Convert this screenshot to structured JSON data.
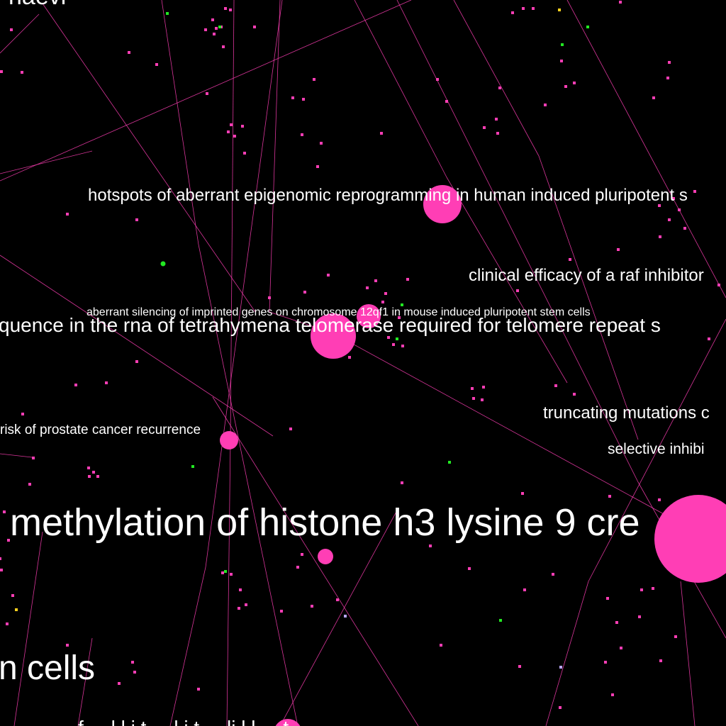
{
  "colors": {
    "background": "#000000",
    "node": "#ff3eb5",
    "edge": "#ff3eb5",
    "node_green": "#22e822",
    "node_yellow": "#ffd21f",
    "node_lavender": "#b9a6ff",
    "label": "#ffffff"
  },
  "labels": {
    "naevi": "naevi",
    "hotspots": "hotspots of aberrant epigenomic reprogramming in human induced pluripotent s",
    "raf": "clinical efficacy of a raf inhibitor",
    "imprinted": "aberrant silencing of imprinted genes on chromosome 12qf1 in mouse induced pluripotent stem cells",
    "telomerase": "quence in the rna of tetrahymena telomerase required for telomere repeat s",
    "truncating": "truncating mutations c",
    "prostate": "risk of prostate cancer recurrence",
    "selective": "selective inhibi",
    "methylation": "methylation of histone h3 lysine 9 cre",
    "cells": "n cells",
    "bottom": "f   ...  l  l  i  t  ...  l  i  t  ...  li  l  l  ...  t"
  }
}
